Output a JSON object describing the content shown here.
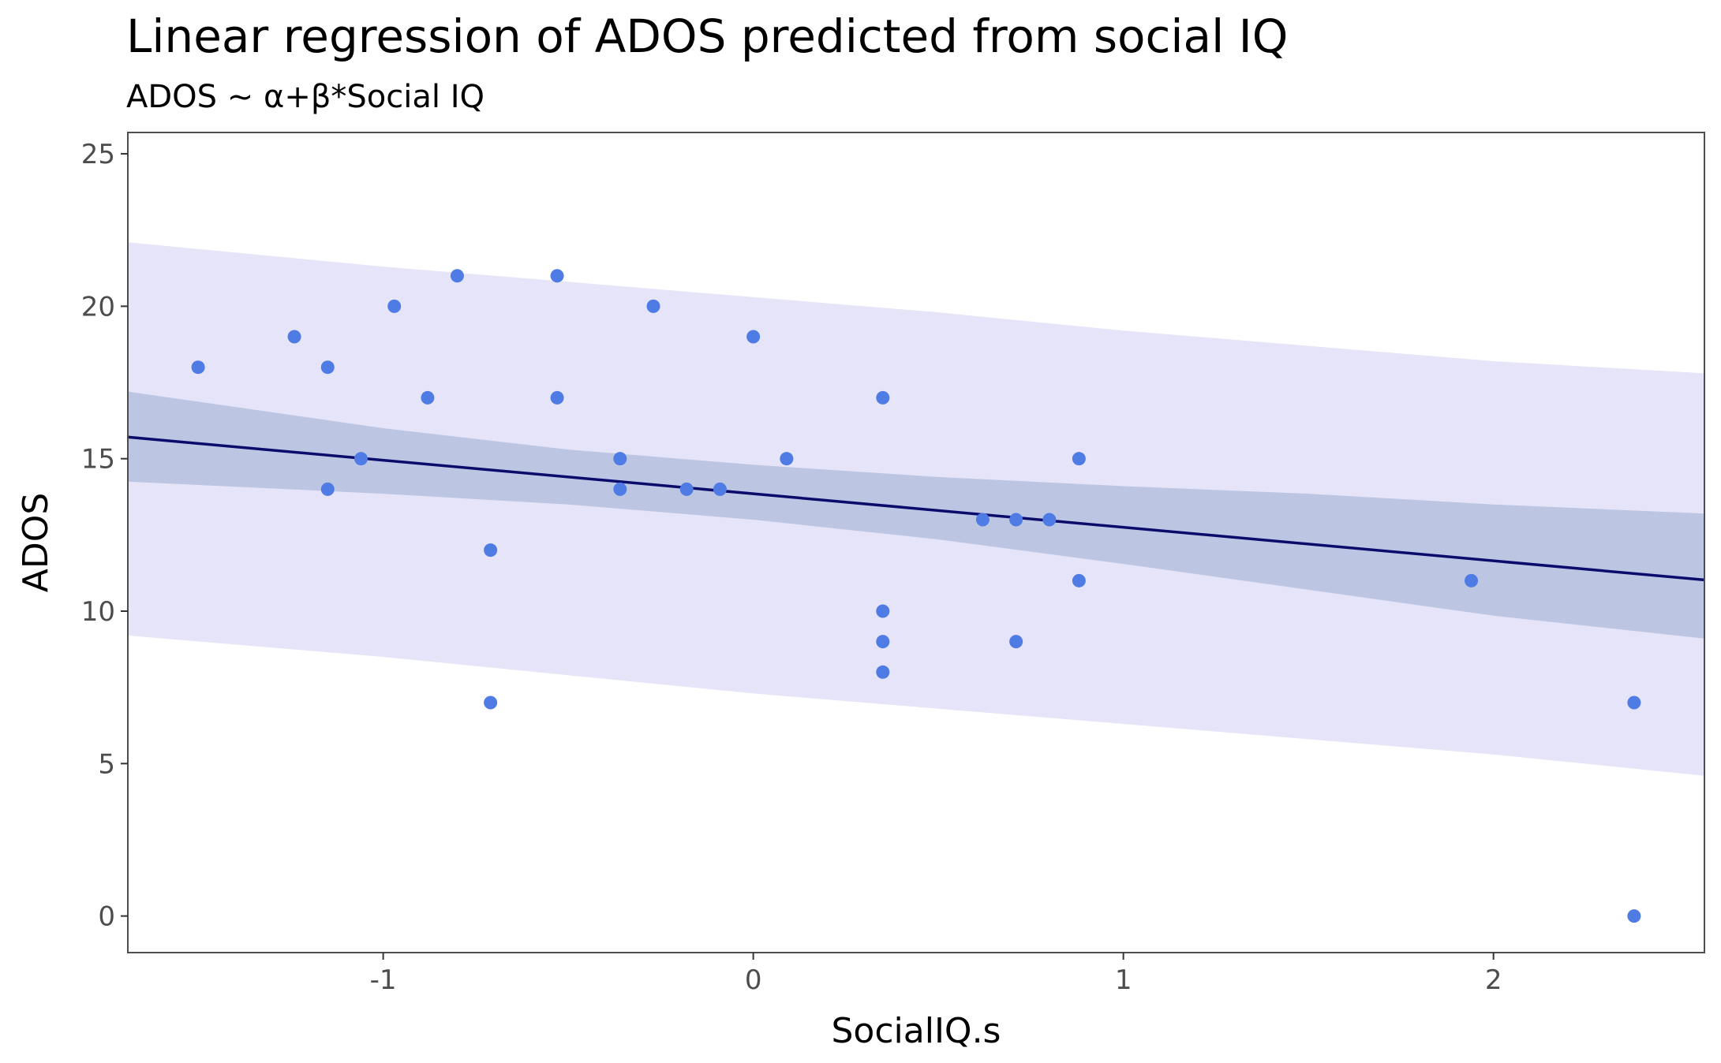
{
  "chart_data": {
    "type": "scatter",
    "title": "Linear regression of ADOS predicted from social IQ",
    "subtitle": "ADOS ~ α+β*Social IQ",
    "xlabel": "SocialIQ.s",
    "ylabel": "ADOS",
    "xlim": [
      -1.69,
      2.57
    ],
    "ylim": [
      -1.2,
      25.7
    ],
    "xticks": [
      -1,
      0,
      1,
      2
    ],
    "xtick_labels": [
      "-1",
      "0",
      "1",
      "2"
    ],
    "yticks": [
      0,
      5,
      10,
      15,
      20,
      25
    ],
    "ytick_labels": [
      "0",
      "5",
      "10",
      "15",
      "20",
      "25"
    ],
    "grid": false,
    "regression_line": {
      "intercept": 13.85,
      "slope": -1.1
    },
    "confidence_band": {
      "x": [
        -1.69,
        -1.0,
        -0.5,
        0,
        0.5,
        1.0,
        1.5,
        2.0,
        2.57
      ],
      "lower": [
        14.25,
        13.85,
        13.5,
        13.0,
        12.35,
        11.55,
        10.7,
        9.85,
        9.1
      ],
      "upper": [
        17.2,
        16.0,
        15.3,
        14.8,
        14.4,
        14.1,
        13.85,
        13.5,
        13.2
      ]
    },
    "prediction_band": {
      "x": [
        -1.69,
        -1.0,
        -0.5,
        0,
        0.5,
        1.0,
        1.5,
        2.0,
        2.57
      ],
      "lower": [
        9.2,
        8.5,
        7.9,
        7.3,
        6.8,
        6.3,
        5.8,
        5.3,
        4.6
      ],
      "upper": [
        22.1,
        21.3,
        20.8,
        20.3,
        19.8,
        19.2,
        18.7,
        18.2,
        17.8
      ]
    },
    "points": [
      {
        "x": -1.5,
        "y": 18
      },
      {
        "x": -1.24,
        "y": 19
      },
      {
        "x": -1.15,
        "y": 18
      },
      {
        "x": -1.15,
        "y": 14
      },
      {
        "x": -1.06,
        "y": 15
      },
      {
        "x": -0.97,
        "y": 20
      },
      {
        "x": -0.88,
        "y": 17
      },
      {
        "x": -0.8,
        "y": 21
      },
      {
        "x": -0.71,
        "y": 12
      },
      {
        "x": -0.71,
        "y": 7
      },
      {
        "x": -0.53,
        "y": 21
      },
      {
        "x": -0.53,
        "y": 17
      },
      {
        "x": -0.36,
        "y": 15
      },
      {
        "x": -0.36,
        "y": 14
      },
      {
        "x": -0.27,
        "y": 20
      },
      {
        "x": -0.18,
        "y": 14
      },
      {
        "x": -0.09,
        "y": 14
      },
      {
        "x": 0.0,
        "y": 19
      },
      {
        "x": 0.09,
        "y": 15
      },
      {
        "x": 0.35,
        "y": 17
      },
      {
        "x": 0.35,
        "y": 10
      },
      {
        "x": 0.35,
        "y": 9
      },
      {
        "x": 0.35,
        "y": 8
      },
      {
        "x": 0.62,
        "y": 13
      },
      {
        "x": 0.71,
        "y": 13
      },
      {
        "x": 0.71,
        "y": 9
      },
      {
        "x": 0.8,
        "y": 13
      },
      {
        "x": 0.88,
        "y": 15
      },
      {
        "x": 0.88,
        "y": 11
      },
      {
        "x": 1.94,
        "y": 11
      },
      {
        "x": 2.38,
        "y": 7
      },
      {
        "x": 2.38,
        "y": 0
      }
    ],
    "colors": {
      "point": "#4f7be4",
      "line": "#0b0b6b",
      "confidence_band": "#bcc6e3",
      "prediction_band": "#e5e4f8",
      "panel_border": "#4d4d4d"
    }
  }
}
